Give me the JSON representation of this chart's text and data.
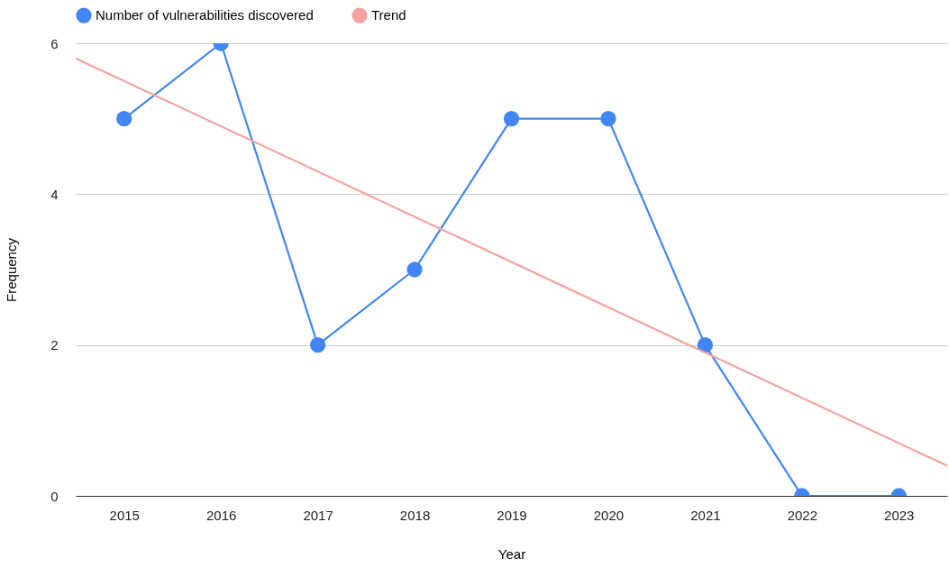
{
  "chart_data": {
    "type": "line",
    "xlabel": "Year",
    "ylabel": "Frequency",
    "x": [
      2015,
      2016,
      2017,
      2018,
      2019,
      2020,
      2021,
      2022,
      2023
    ],
    "series": [
      {
        "name": "Number of vulnerabilities discovered",
        "color": "#4285f4",
        "values": [
          5,
          6,
          2,
          3,
          5,
          5,
          2,
          0,
          0
        ]
      },
      {
        "name": "Trend",
        "color": "#f4a3a0",
        "type": "line",
        "marker": "none",
        "x": [
          2014.5,
          2023.5
        ],
        "values": [
          5.8,
          0.4
        ]
      }
    ],
    "xlim": [
      2014.5,
      2023.5
    ],
    "xticks": [
      2015,
      2016,
      2017,
      2018,
      2019,
      2020,
      2021,
      2022,
      2023
    ],
    "ylim": [
      0,
      6
    ],
    "yticks": [
      0,
      2,
      4,
      6
    ],
    "grid": "y",
    "legend": "top",
    "marker": "circle",
    "line_style": "solid"
  }
}
